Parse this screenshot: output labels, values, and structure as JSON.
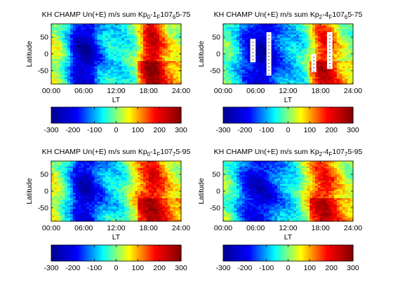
{
  "figure": {
    "colorscale": [
      "#00008f",
      "#0000ff",
      "#00ffff",
      "#ffff00",
      "#ff0000",
      "#800000"
    ],
    "colorbar": {
      "min": -300,
      "max": 300,
      "ticks": [
        -300,
        -200,
        -100,
        0,
        100,
        200,
        300
      ]
    }
  },
  "chart_data": [
    {
      "type": "heatmap",
      "title": {
        "a": "KH CHAMP Un(+E) m/s sum Kp",
        "b": "0",
        "c": "-1",
        "d": "F",
        "e": "107",
        "f": "6",
        "g": "5-75"
      },
      "xlabel": "LT",
      "ylabel": "Latitude",
      "xticks": [
        "00:00",
        "06:00",
        "12:00",
        "18:00",
        "24:00"
      ],
      "yticks": [
        50,
        0,
        -50
      ],
      "xlim": [
        0,
        24
      ],
      "ylim": [
        -90,
        90
      ],
      "value_range": [
        -300,
        300
      ],
      "lt_profile": [
        40,
        20,
        -40,
        -120,
        -240,
        -270,
        -280,
        -260,
        -160,
        -120,
        -80,
        -70,
        -80,
        -60,
        -40,
        -10,
        80,
        200,
        250,
        230,
        150,
        80,
        50,
        30
      ],
      "missing": []
    },
    {
      "type": "heatmap",
      "title": {
        "a": "KH CHAMP Un(+E) m/s sum Kp",
        "b": "2",
        "c": "-4",
        "d": "F",
        "e": "107",
        "f": "6",
        "g": "5-75"
      },
      "xlabel": "LT",
      "ylabel": "Latitude",
      "xticks": [
        "00:00",
        "06:00",
        "12:00",
        "18:00",
        "24:00"
      ],
      "yticks": [
        50,
        0,
        -50
      ],
      "xlim": [
        0,
        24
      ],
      "ylim": [
        -90,
        90
      ],
      "value_range": [
        -300,
        300
      ],
      "lt_profile": [
        -20,
        -40,
        -80,
        -140,
        -200,
        -230,
        -260,
        -280,
        -260,
        -200,
        -150,
        -120,
        -100,
        -80,
        -60,
        -20,
        60,
        150,
        200,
        180,
        120,
        60,
        20,
        0
      ],
      "missing": [
        {
          "lt": [
            5.0,
            6.0
          ],
          "lat": [
            -25,
            45
          ]
        },
        {
          "lt": [
            8.0,
            8.9
          ],
          "lat": [
            -65,
            65
          ]
        },
        {
          "lt": [
            16.3,
            17.2
          ],
          "lat": [
            -55,
            0
          ]
        },
        {
          "lt": [
            19.2,
            20.2
          ],
          "lat": [
            -45,
            65
          ]
        }
      ]
    },
    {
      "type": "heatmap",
      "title": {
        "a": "KH CHAMP Un(+E) m/s sum Kp",
        "b": "0",
        "c": "-1",
        "d": "F",
        "e": "107",
        "f": "7",
        "g": "5-95"
      },
      "xlabel": "LT",
      "ylabel": "Latitude",
      "xticks": [
        "00:00",
        "06:00",
        "12:00",
        "18:00",
        "24:00"
      ],
      "yticks": [
        50,
        0,
        -50
      ],
      "xlim": [
        0,
        24
      ],
      "ylim": [
        -90,
        90
      ],
      "value_range": [
        -300,
        300
      ],
      "lt_profile": [
        40,
        20,
        -40,
        -100,
        -200,
        -250,
        -260,
        -230,
        -160,
        -130,
        -100,
        -80,
        -70,
        -40,
        20,
        80,
        140,
        180,
        220,
        200,
        150,
        100,
        60,
        40
      ],
      "missing": []
    },
    {
      "type": "heatmap",
      "title": {
        "a": "KH CHAMP Un(+E) m/s sum Kp",
        "b": "2",
        "c": "-4",
        "d": "F",
        "e": "107",
        "f": "7",
        "g": "5-95"
      },
      "xlabel": "LT",
      "ylabel": "Latitude",
      "xticks": [
        "00:00",
        "06:00",
        "12:00",
        "18:00",
        "24:00"
      ],
      "yticks": [
        50,
        0,
        -50
      ],
      "xlim": [
        0,
        24
      ],
      "ylim": [
        -90,
        90
      ],
      "value_range": [
        -300,
        300
      ],
      "lt_profile": [
        0,
        -30,
        -80,
        -150,
        -200,
        -230,
        -250,
        -240,
        -200,
        -170,
        -130,
        -100,
        -80,
        -50,
        0,
        60,
        120,
        170,
        200,
        180,
        130,
        80,
        40,
        20
      ],
      "missing": []
    }
  ]
}
